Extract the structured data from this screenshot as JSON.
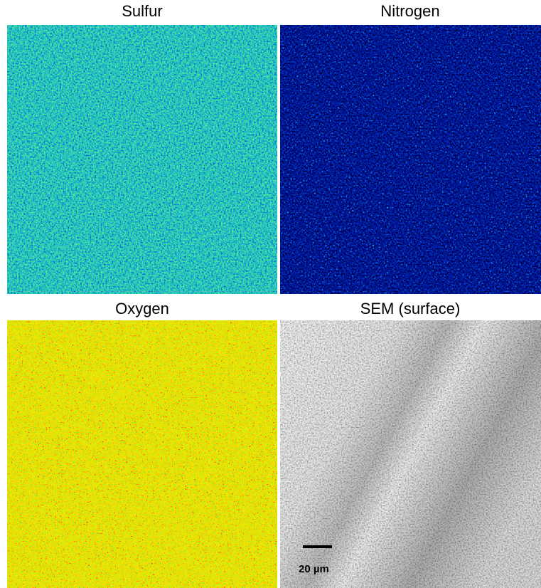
{
  "panels": [
    {
      "title": "Sulfur"
    },
    {
      "title": "Nitrogen"
    },
    {
      "title": "Oxygen"
    },
    {
      "title": "SEM (surface)"
    }
  ],
  "scale_bar": {
    "label": "20 µm"
  }
}
